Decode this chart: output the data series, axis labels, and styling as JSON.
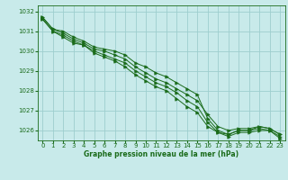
{
  "title": "Graphe pression niveau de la mer (hPa)",
  "xlabel": "Graphe pression niveau de la mer (hPa)",
  "bg_color": "#c8eaea",
  "grid_color": "#9ecece",
  "line_color": "#1a6b1a",
  "xlim": [
    -0.5,
    23.5
  ],
  "ylim": [
    1025.5,
    1032.3
  ],
  "yticks": [
    1026,
    1027,
    1028,
    1029,
    1030,
    1031,
    1032
  ],
  "xticks": [
    0,
    1,
    2,
    3,
    4,
    5,
    6,
    7,
    8,
    9,
    10,
    11,
    12,
    13,
    14,
    15,
    16,
    17,
    18,
    19,
    20,
    21,
    22,
    23
  ],
  "series": [
    [
      1031.7,
      1031.1,
      1031.0,
      1030.7,
      1030.5,
      1030.2,
      1030.1,
      1030.0,
      1029.8,
      1029.4,
      1029.2,
      1028.9,
      1028.7,
      1028.4,
      1028.1,
      1027.8,
      1026.6,
      1026.0,
      1025.8,
      1026.0,
      1026.0,
      1026.2,
      1026.1,
      1025.8
    ],
    [
      1031.7,
      1031.1,
      1030.9,
      1030.6,
      1030.4,
      1030.1,
      1030.0,
      1029.8,
      1029.6,
      1029.2,
      1028.9,
      1028.6,
      1028.4,
      1028.1,
      1027.8,
      1027.5,
      1026.8,
      1026.2,
      1026.0,
      1026.1,
      1026.1,
      1026.2,
      1026.1,
      1025.8
    ],
    [
      1031.6,
      1031.0,
      1030.8,
      1030.5,
      1030.3,
      1030.0,
      1029.8,
      1029.6,
      1029.4,
      1029.0,
      1028.7,
      1028.4,
      1028.2,
      1027.9,
      1027.5,
      1027.2,
      1026.4,
      1025.9,
      1025.8,
      1026.0,
      1026.0,
      1026.1,
      1026.0,
      1025.7
    ],
    [
      1031.6,
      1031.0,
      1030.7,
      1030.4,
      1030.3,
      1029.9,
      1029.7,
      1029.5,
      1029.2,
      1028.8,
      1028.5,
      1028.2,
      1028.0,
      1027.6,
      1027.2,
      1026.9,
      1026.2,
      1025.9,
      1025.7,
      1025.9,
      1025.9,
      1026.0,
      1026.0,
      1025.6
    ]
  ]
}
